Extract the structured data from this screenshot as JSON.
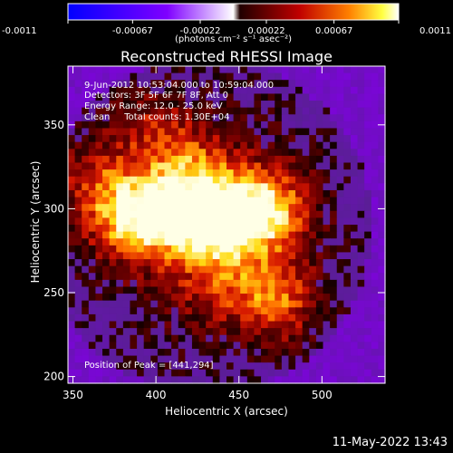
{
  "colorbar": {
    "ticks": [
      "-0.0011",
      "-0.00067",
      "-0.00022",
      "0.00022",
      "0.00067",
      "0.0011"
    ],
    "tick_values": [
      -0.0011,
      -0.00067,
      -0.00022,
      0.00022,
      0.00067,
      0.0011
    ],
    "range": [
      -0.0011,
      0.0011
    ],
    "unit_label": "(photons cm⁻² s⁻¹ asec⁻²)",
    "colors": [
      "#0000ff",
      "#7f00ff",
      "#ffffff",
      "#ff6600",
      "#ffff00",
      "#ffffff"
    ]
  },
  "chart_data": {
    "type": "heatmap",
    "title": "Reconstructed RHESSI Image",
    "xlabel": "Heliocentric X (arcsec)",
    "ylabel": "Heliocentric Y (arcsec)",
    "xlim": [
      347,
      538
    ],
    "ylim": [
      196,
      385
    ],
    "x_ticks": [
      350,
      400,
      450,
      500
    ],
    "y_ticks": [
      200,
      250,
      300,
      350
    ],
    "annotations": {
      "time": "9-Jun-2012 10:53:04.000 to 10:59:04.000",
      "detectors": "Detectors: 3F 5F 6F 7F 8F, Att 0",
      "energy": "Energy Range: 12.0 - 25.0 keV",
      "clean": "Clean     Total counts: 1.30E+04",
      "peak": "Position of Peak = [441,294]"
    },
    "peak": [
      441,
      294
    ],
    "sources": [
      {
        "x": 441,
        "y": 294,
        "intensity": 1.0
      },
      {
        "x": 405,
        "y": 296,
        "intensity": 0.75
      },
      {
        "x": 380,
        "y": 297,
        "intensity": 0.6
      },
      {
        "x": 470,
        "y": 300,
        "intensity": 0.65
      },
      {
        "x": 474,
        "y": 245,
        "intensity": 0.55
      },
      {
        "x": 420,
        "y": 325,
        "intensity": 0.4
      },
      {
        "x": 360,
        "y": 320,
        "intensity": 0.35
      },
      {
        "x": 440,
        "y": 255,
        "intensity": 0.3
      },
      {
        "x": 395,
        "y": 350,
        "intensity": 0.3
      }
    ]
  },
  "timestamp": "11-May-2022 13:43"
}
